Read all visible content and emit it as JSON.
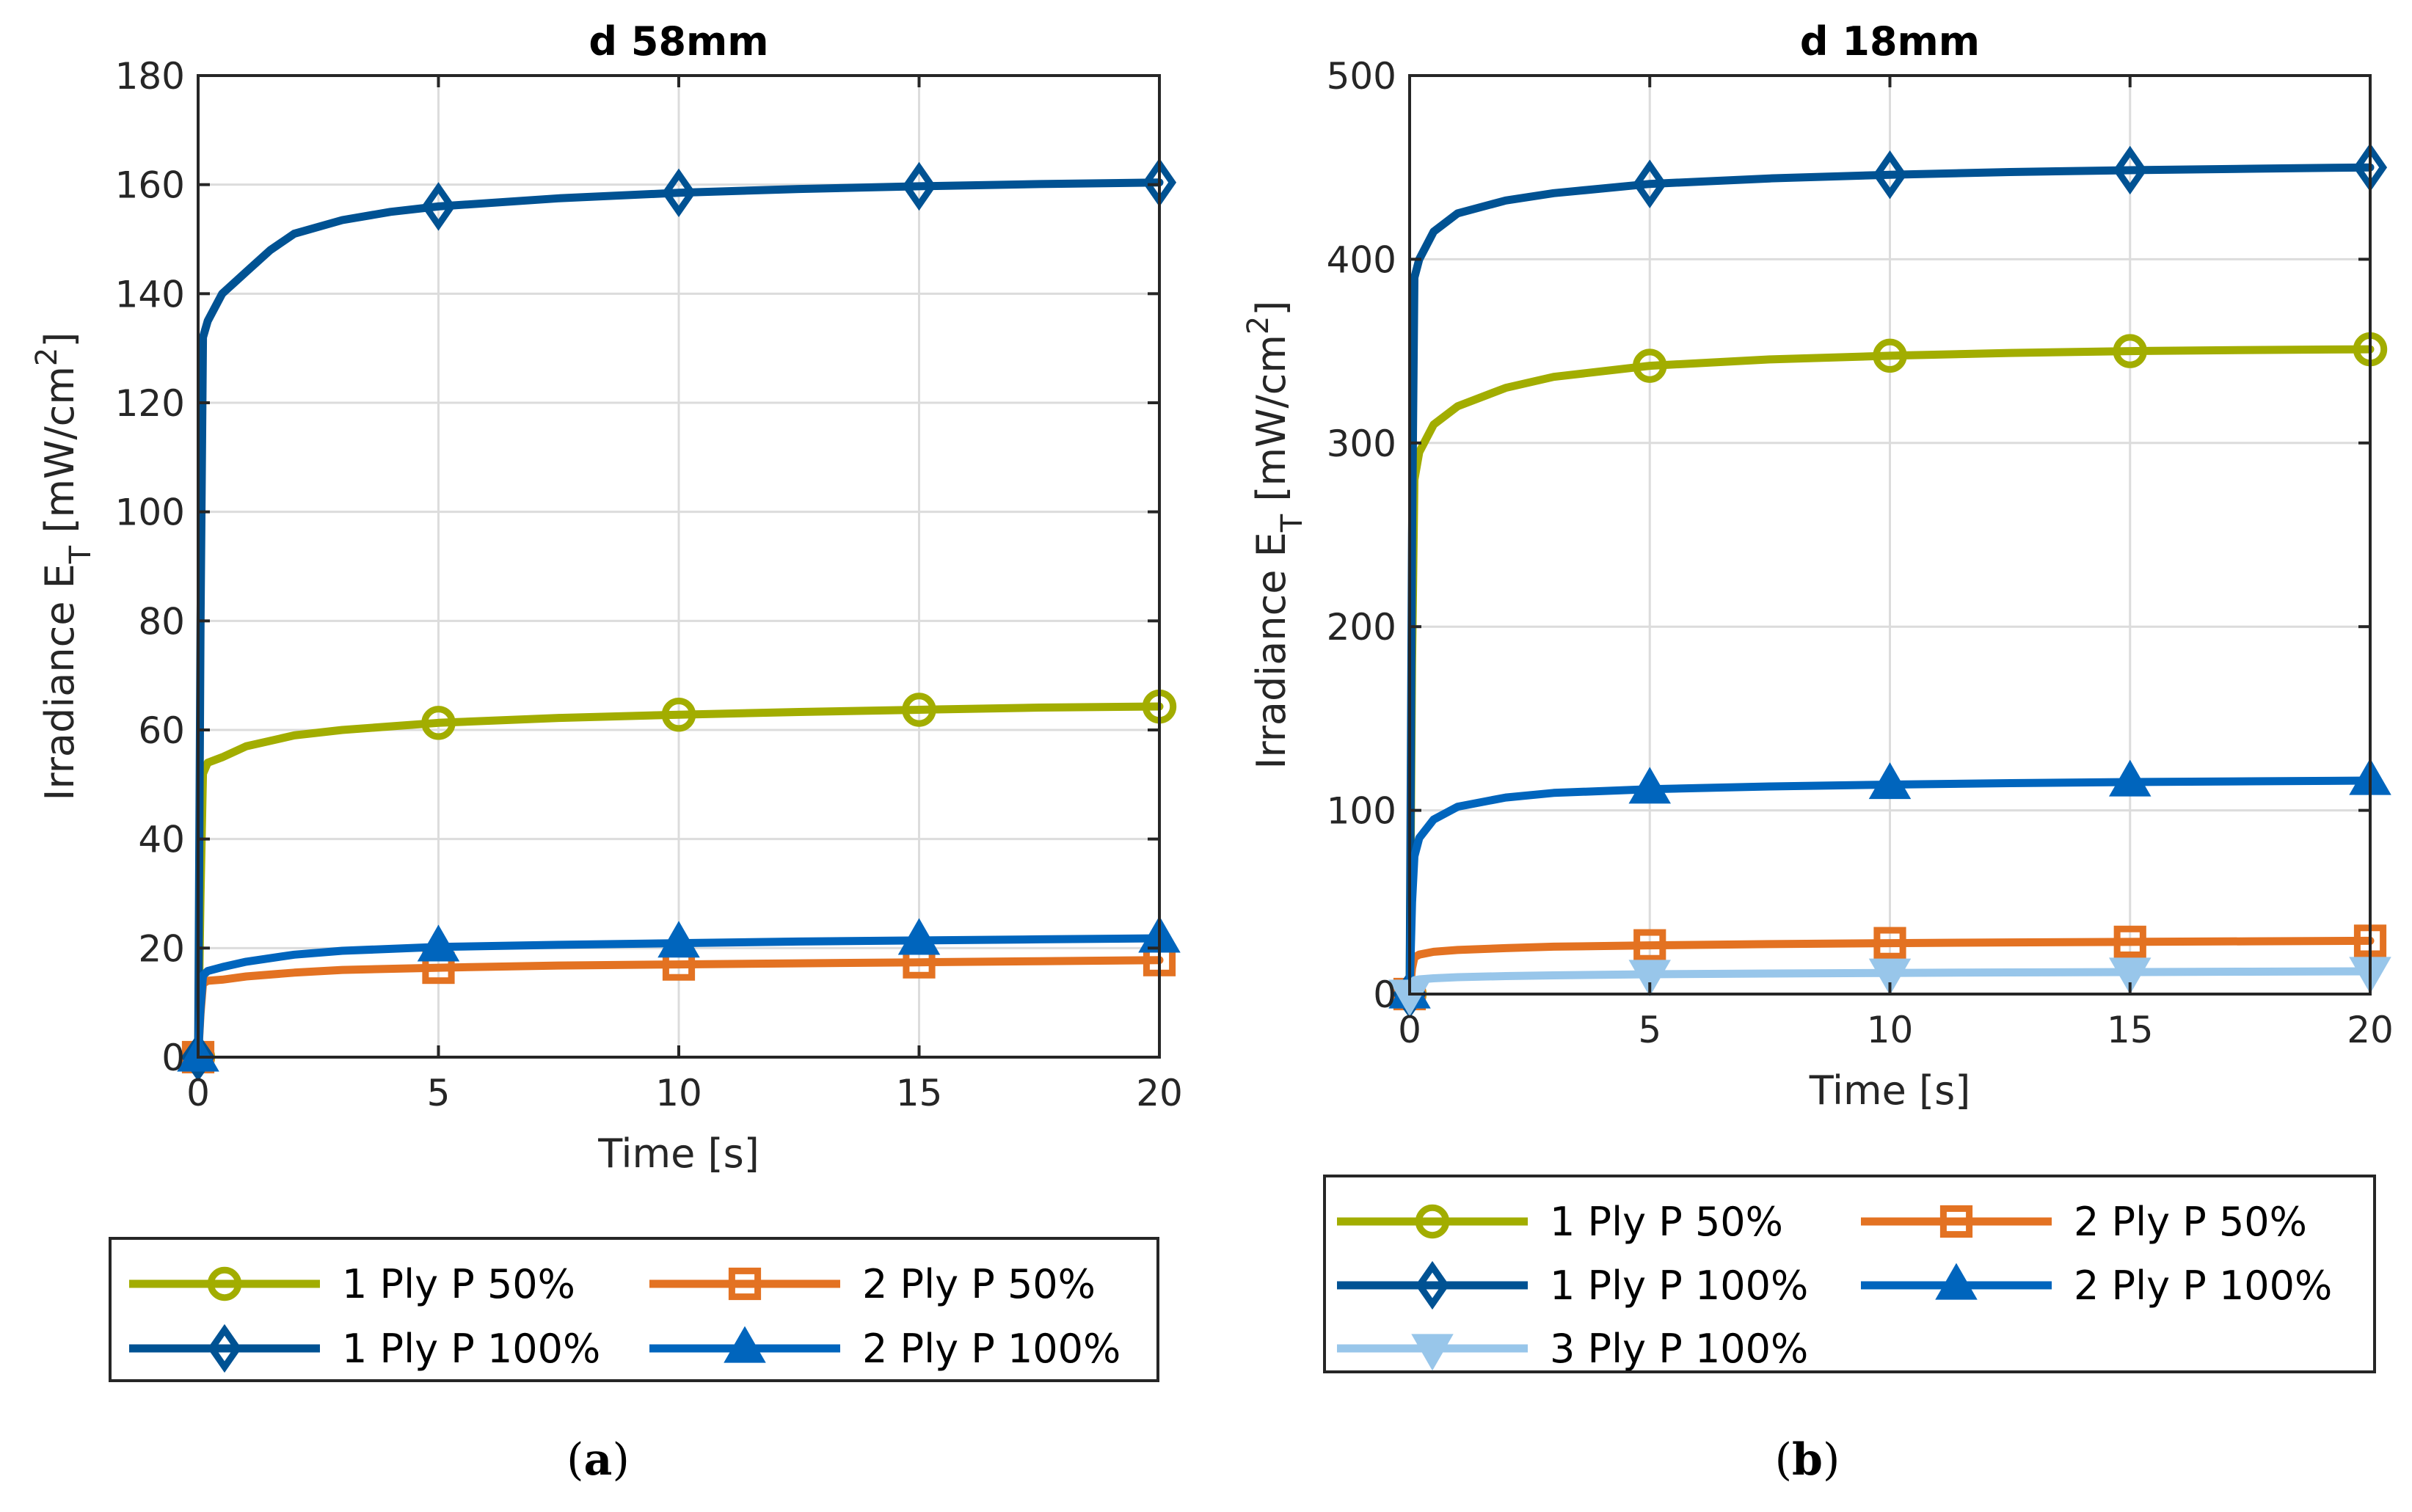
{
  "chart_data": [
    {
      "type": "line",
      "panel": "a",
      "caption": "a",
      "title": "d 58mm",
      "xlabel": "Time [s]",
      "ylabel": "Irradiance E",
      "ylabel_sub": "T",
      "ylabel_unit_pre": "[mW/cm",
      "ylabel_unit_sup": "2",
      "ylabel_unit_post": "]",
      "xlim": [
        0,
        20
      ],
      "ylim": [
        0,
        180
      ],
      "xticks": [
        0,
        5,
        10,
        15,
        20
      ],
      "yticks": [
        0,
        20,
        40,
        60,
        80,
        100,
        120,
        140,
        160,
        180
      ],
      "grid": true,
      "legend_position": "bottom-outside",
      "legend_columns": 2,
      "series": [
        {
          "name": "1 Ply P 50%",
          "color": "#A2AD00",
          "marker": "circle",
          "x": [
            0,
            0.05,
            0.1,
            0.2,
            0.5,
            1,
            2,
            3,
            5,
            7.5,
            10,
            12.5,
            15,
            17.5,
            20
          ],
          "y": [
            0,
            30,
            52,
            54,
            55,
            57,
            59,
            60,
            61.3,
            62.2,
            62.8,
            63.3,
            63.7,
            64.1,
            64.3
          ],
          "markers_x": [
            0,
            5,
            10,
            15,
            20
          ]
        },
        {
          "name": "2 Ply P 50%",
          "color": "#E37222",
          "marker": "square",
          "x": [
            0,
            0.05,
            0.1,
            0.2,
            0.5,
            1,
            2,
            3,
            5,
            7.5,
            10,
            12.5,
            15,
            17.5,
            20
          ],
          "y": [
            0,
            8,
            13.5,
            14,
            14.2,
            14.8,
            15.5,
            16,
            16.4,
            16.8,
            17.0,
            17.2,
            17.4,
            17.6,
            17.8
          ],
          "markers_x": [
            0,
            5,
            10,
            15,
            20
          ]
        },
        {
          "name": "1 Ply P 100%",
          "color": "#005293",
          "marker": "diamond",
          "x": [
            0,
            0.05,
            0.1,
            0.2,
            0.5,
            1,
            1.5,
            2,
            3,
            4,
            5,
            7.5,
            10,
            12.5,
            15,
            17.5,
            20
          ],
          "y": [
            0,
            80,
            132,
            135,
            140,
            144,
            148,
            151,
            153.5,
            155,
            156,
            157.5,
            158.5,
            159.2,
            159.7,
            160.1,
            160.4
          ],
          "markers_x": [
            0,
            5,
            10,
            15,
            20
          ]
        },
        {
          "name": "2 Ply P 100%",
          "color": "#0065BD",
          "marker": "triangle-up",
          "x": [
            0,
            0.05,
            0.1,
            0.2,
            0.5,
            1,
            2,
            3,
            5,
            7.5,
            10,
            12.5,
            15,
            17.5,
            20
          ],
          "y": [
            0,
            9,
            15,
            15.8,
            16.5,
            17.5,
            18.8,
            19.5,
            20.2,
            20.6,
            20.9,
            21.2,
            21.4,
            21.6,
            21.8
          ],
          "markers_x": [
            0,
            5,
            10,
            15,
            20
          ]
        }
      ]
    },
    {
      "type": "line",
      "panel": "b",
      "caption": "b",
      "title": "d 18mm",
      "xlabel": "Time [s]",
      "ylabel": "Irradiance E",
      "ylabel_sub": "T",
      "ylabel_unit_pre": "[mW/cm",
      "ylabel_unit_sup": "2",
      "ylabel_unit_post": "]",
      "xlim": [
        0,
        20
      ],
      "ylim": [
        0,
        500
      ],
      "xticks": [
        0,
        5,
        10,
        15,
        20
      ],
      "yticks": [
        0,
        100,
        200,
        300,
        400,
        500
      ],
      "grid": true,
      "legend_position": "bottom-outside",
      "legend_columns": 2,
      "series": [
        {
          "name": "1 Ply P 50%",
          "color": "#A2AD00",
          "marker": "circle",
          "x": [
            0,
            0.05,
            0.1,
            0.2,
            0.5,
            1,
            2,
            3,
            5,
            7.5,
            10,
            12.5,
            15,
            17.5,
            20
          ],
          "y": [
            0,
            180,
            280,
            295,
            310,
            320,
            330,
            336,
            342,
            345.5,
            347.5,
            349,
            350,
            350.6,
            351
          ],
          "markers_x": [
            0,
            5,
            10,
            15,
            20
          ]
        },
        {
          "name": "2 Ply P 50%",
          "color": "#E37222",
          "marker": "square",
          "x": [
            0,
            0.05,
            0.1,
            0.2,
            0.5,
            1,
            2,
            3,
            5,
            7.5,
            10,
            12.5,
            15,
            17.5,
            20
          ],
          "y": [
            0,
            14,
            20,
            21.5,
            23,
            24,
            25,
            25.8,
            26.5,
            27.2,
            27.7,
            28.1,
            28.4,
            28.7,
            29
          ],
          "markers_x": [
            0,
            5,
            10,
            15,
            20
          ]
        },
        {
          "name": "1 Ply P 100%",
          "color": "#005293",
          "marker": "diamond",
          "x": [
            0,
            0.05,
            0.1,
            0.2,
            0.5,
            1,
            2,
            3,
            5,
            7.5,
            10,
            12.5,
            15,
            17.5,
            20
          ],
          "y": [
            0,
            250,
            390,
            400,
            415,
            425,
            432,
            436,
            441,
            444,
            446,
            447.5,
            448.5,
            449.3,
            450
          ],
          "markers_x": [
            0,
            5,
            10,
            15,
            20
          ]
        },
        {
          "name": "2 Ply P 100%",
          "color": "#0065BD",
          "marker": "triangle-up",
          "x": [
            0,
            0.05,
            0.1,
            0.2,
            0.5,
            1,
            2,
            3,
            5,
            7.5,
            10,
            12.5,
            15,
            17.5,
            20
          ],
          "y": [
            0,
            50,
            75,
            85,
            95,
            102,
            107,
            109.5,
            111.5,
            113,
            114,
            114.8,
            115.4,
            115.8,
            116.2
          ],
          "markers_x": [
            0,
            5,
            10,
            15,
            20
          ]
        },
        {
          "name": "3 Ply P 100%",
          "color": "#98C6EA",
          "marker": "triangle-down",
          "x": [
            0,
            0.05,
            0.1,
            0.2,
            0.5,
            1,
            2,
            3,
            5,
            7.5,
            10,
            12.5,
            15,
            17.5,
            20
          ],
          "y": [
            0,
            5,
            7.5,
            8,
            8.6,
            9.2,
            9.8,
            10.2,
            10.8,
            11.2,
            11.5,
            11.8,
            12,
            12.2,
            12.4
          ],
          "markers_x": [
            0,
            5,
            10,
            15,
            20
          ]
        }
      ]
    }
  ]
}
